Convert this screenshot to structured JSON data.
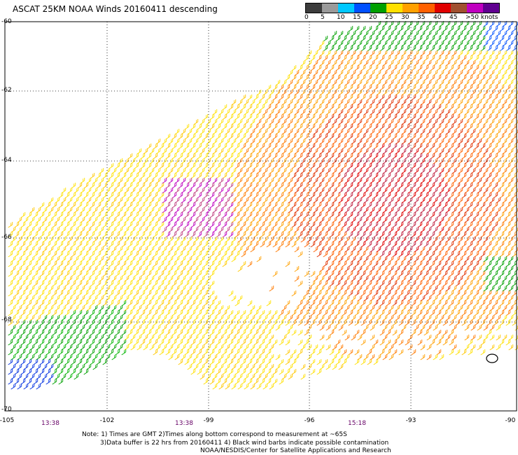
{
  "title": "ASCAT 25KM NOAA Winds 20160411 descending",
  "legend": {
    "labels": [
      "0",
      "5",
      "10",
      "15",
      "20",
      "25",
      "30",
      "35",
      "40",
      "45",
      ">50 knots"
    ],
    "colors": [
      "#3c3c3c",
      "#9a9a9a",
      "#00c8ff",
      "#0050ff",
      "#00a000",
      "#ffe000",
      "#ffa000",
      "#ff6000",
      "#e00000",
      "#a05030",
      "#c000c0",
      "#600090"
    ]
  },
  "axes": {
    "lat_labels": [
      "-60",
      "-62",
      "-64",
      "-66",
      "-68",
      "-70"
    ],
    "lon_labels": [
      "-105",
      "-102",
      "-99",
      "-96",
      "-93",
      "-90"
    ]
  },
  "times": [
    "13:38",
    "13:38",
    "15:18"
  ],
  "notes": {
    "line1": "Note: 1) Times are GMT 2)Times along bottom correspond to measurement at ~65S",
    "line2": "3)Data buffer is 22 hrs from 20160411 4) Black wind barbs indicate possible contamination",
    "line3": "NOAA/NESDIS/Center for Satellite Applications and Research"
  }
}
